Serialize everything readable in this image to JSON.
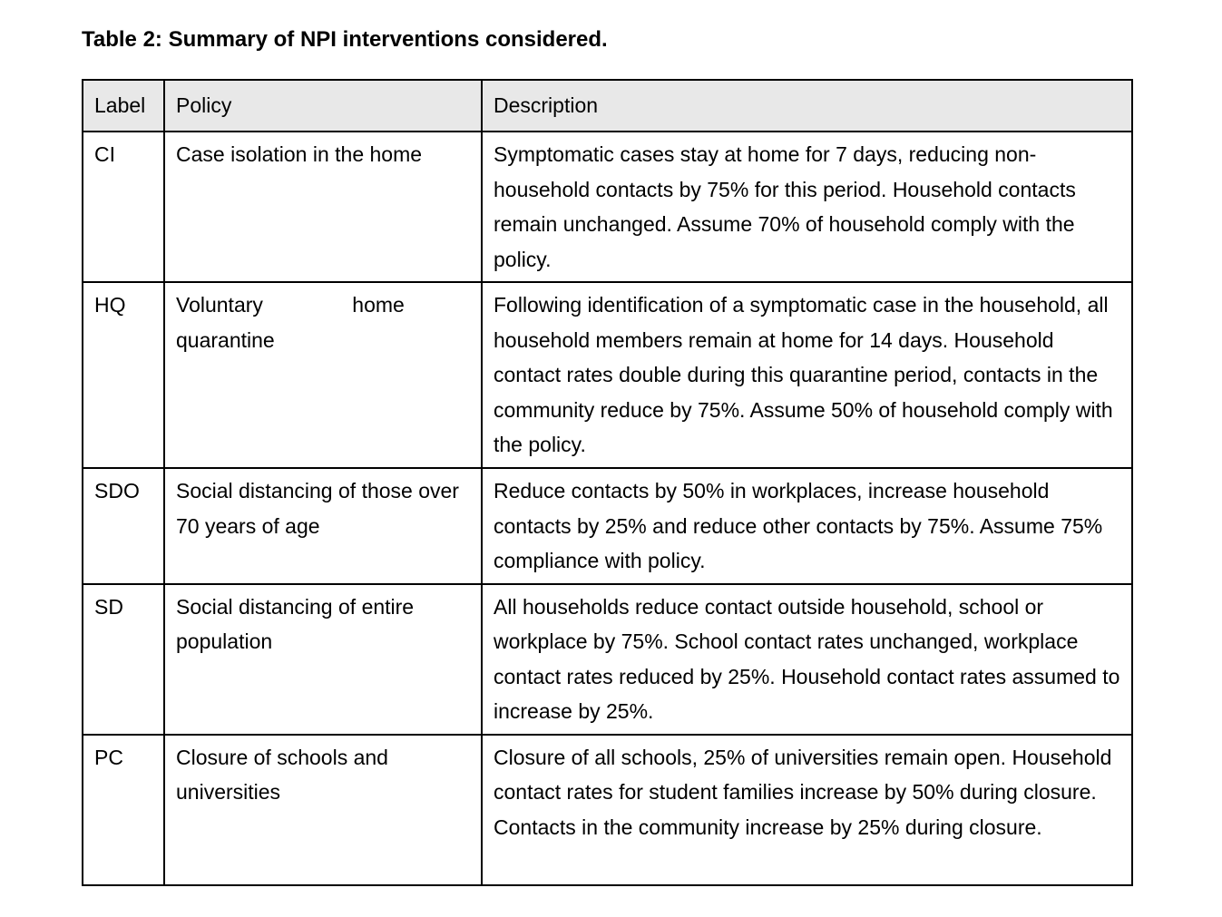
{
  "caption": "Table 2: Summary of NPI interventions considered.",
  "table": {
    "headers": [
      "Label",
      "Policy",
      "Description"
    ],
    "rows": [
      {
        "label": "CI",
        "policy": "Case isolation in the home",
        "description": "Symptomatic cases stay at home for 7 days, reducing non-household contacts by 75% for this period. Household contacts remain unchanged. Assume 70% of household comply with the policy."
      },
      {
        "label": "HQ",
        "policy": "Voluntary home quarantine",
        "description": "Following identification of a symptomatic case in the household, all household members remain at home for 14 days. Household contact rates double during this quarantine period, contacts in the community reduce by 75%. Assume 50% of household comply with the policy."
      },
      {
        "label": "SDO",
        "policy": "Social distancing of those over 70 years of age",
        "description": "Reduce contacts by 50% in workplaces, increase household contacts by 25% and reduce other contacts by 75%. Assume 75% compliance with policy."
      },
      {
        "label": "SD",
        "policy": "Social distancing of entire population",
        "description": "All households reduce contact outside household, school or workplace by 75%. School contact rates unchanged, workplace contact rates reduced by 25%. Household contact rates assumed to increase by 25%."
      },
      {
        "label": "PC",
        "policy": "Closure of schools and universities",
        "description": "Closure of all schools, 25% of universities remain open. Household contact rates for student families increase by 50% during closure. Contacts in the community increase by 25% during closure."
      }
    ]
  },
  "colors": {
    "header_background": "#e8e8e8",
    "border": "#000000",
    "page_background": "#ffffff",
    "text": "#000000"
  }
}
